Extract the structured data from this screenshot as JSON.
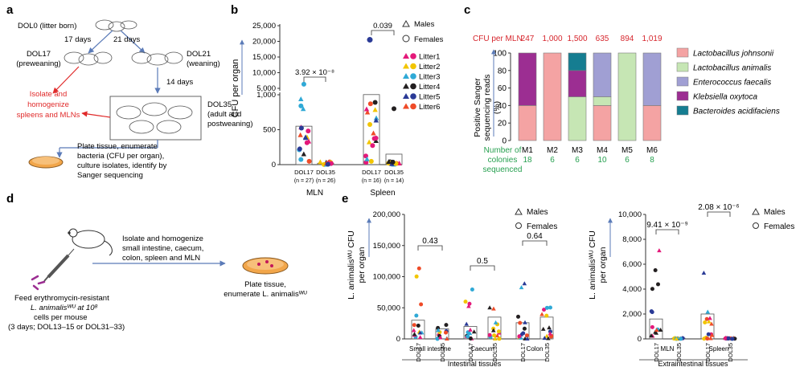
{
  "panel_labels": [
    "a",
    "b",
    "c",
    "d",
    "e"
  ],
  "a": {
    "dol0": "DOL0 (litter born)",
    "d17": "17 days",
    "d21": "21 days",
    "dol17": [
      "DOL17",
      "(preweaning)"
    ],
    "dol21": [
      "DOL21",
      "(weaning)"
    ],
    "d14": "14 days",
    "dol35": [
      "DOL35",
      "(adult and",
      "postweaning)"
    ],
    "isolate": [
      "Isolate and",
      "homogenize",
      "spleens and MLNs"
    ],
    "plate": [
      "Plate tissue, enumerate",
      "bacteria (CFU per organ),",
      "culture isolates, identify by",
      "Sanger sequencing"
    ]
  },
  "b": {
    "ylabel": "CFU per organ",
    "yticks_top": [
      "25,000",
      "20,000",
      "15,000",
      "10,000",
      "5,000"
    ],
    "yticks_bottom": [
      "1,000",
      "500",
      "0"
    ],
    "groups": [
      {
        "name": "MLN",
        "cats": [
          "DOL17",
          "DOL35"
        ],
        "ns": [
          "(n = 27)",
          "(n = 26)"
        ],
        "p": "3.92 × 10⁻⁸",
        "means": [
          550,
          20
        ]
      },
      {
        "name": "Spleen",
        "cats": [
          "DOL17",
          "DOL35"
        ],
        "ns": [
          "(n = 16)",
          "(n = 14)"
        ],
        "p": "0.039",
        "means": [
          3000,
          150
        ]
      }
    ],
    "legend": {
      "males": "Males",
      "females": "Females",
      "litters": [
        "Litter1",
        "Litter2",
        "Litter3",
        "Litter4",
        "Litter5",
        "Litter6"
      ]
    }
  },
  "litter_colors": [
    "#e4197a",
    "#f2c500",
    "#2fa9d6",
    "#231f20",
    "#2a3a96",
    "#ef4b28"
  ],
  "c": {
    "title": "CFU per MLN",
    "cfu": [
      "247",
      "1,000",
      "1,500",
      "635",
      "894",
      "1,019"
    ],
    "ylabel": [
      "Positive Sanger",
      "sequencing reads",
      "(%)"
    ],
    "yticks": [
      "0",
      "20",
      "40",
      "60",
      "80",
      "100"
    ],
    "colonies_label": [
      "Number of",
      "colonies",
      "sequenced"
    ],
    "chart_data": {
      "type": "bar",
      "categories": [
        "M1",
        "M2",
        "M3",
        "M4",
        "M5",
        "M6"
      ],
      "colonies": [
        "18",
        "6",
        "6",
        "10",
        "6",
        "8"
      ],
      "ylim": [
        0,
        100
      ],
      "series": [
        {
          "name": "Lactobacillus johnsonii",
          "color": "#f4a3a3",
          "values": [
            40,
            100,
            0,
            40,
            0,
            40
          ]
        },
        {
          "name": "Lactobacillus animalis",
          "color": "#c6e6b4",
          "values": [
            0,
            0,
            50,
            10,
            100,
            0
          ]
        },
        {
          "name": "Enterococcus faecalis",
          "color": "#a09fd3",
          "values": [
            0,
            0,
            0,
            50,
            0,
            60
          ]
        },
        {
          "name": "Klebsiella oxytoca",
          "color": "#9c2e92",
          "values": [
            60,
            0,
            30,
            0,
            0,
            0
          ]
        },
        {
          "name": "Bacteroides acidifaciens",
          "color": "#157d91",
          "values": [
            0,
            0,
            20,
            0,
            0,
            0
          ]
        }
      ]
    }
  },
  "d": {
    "isolate": [
      "Isolate and homogenize",
      "small intestine, caecum,",
      "colon, spleen and MLN"
    ],
    "plate": [
      "Plate tissue,",
      "enumerate L. animalisᵂᵁ"
    ],
    "feed": [
      "Feed erythromycin-resistant",
      "L. animalisᵂᵁ at 10⁸",
      "cells per mouse",
      "(3 days; DOL13–15 or DOL31–33)"
    ]
  },
  "e": {
    "left": {
      "ylabel": [
        "L. animalisᵂᵁ CFU",
        "per organ"
      ],
      "yticks": [
        "0",
        "50,000",
        "100,000",
        "150,000",
        "200,000"
      ],
      "cats": [
        "DOL17",
        "DOL35",
        "DOL17",
        "DOL35",
        "DOL17",
        "DOL35"
      ],
      "groups": [
        "Small intestine",
        "Caecum",
        "Colon"
      ],
      "pvals": [
        "0.43",
        "0.5",
        "0.64"
      ],
      "section": "Intestinal tissues",
      "means": [
        30000,
        16000,
        20000,
        35000,
        26000,
        35000
      ]
    },
    "right": {
      "ylabel": [
        "L. animalisᵂᵁ CFU",
        "per organ"
      ],
      "yticks": [
        "0",
        "2,000",
        "4,000",
        "6,000",
        "8,000",
        "10,000"
      ],
      "cats": [
        "DOL17",
        "DOL35",
        "DOL17",
        "DOL35"
      ],
      "groups": [
        "MLN",
        "Spleen"
      ],
      "pvals": [
        "9.41 × 10⁻⁹",
        "2.08 × 10⁻⁶"
      ],
      "section": "Extraintestinal tissues",
      "means": [
        1600,
        60,
        2000,
        60
      ]
    },
    "legend": {
      "males": "Males",
      "females": "Females"
    }
  }
}
